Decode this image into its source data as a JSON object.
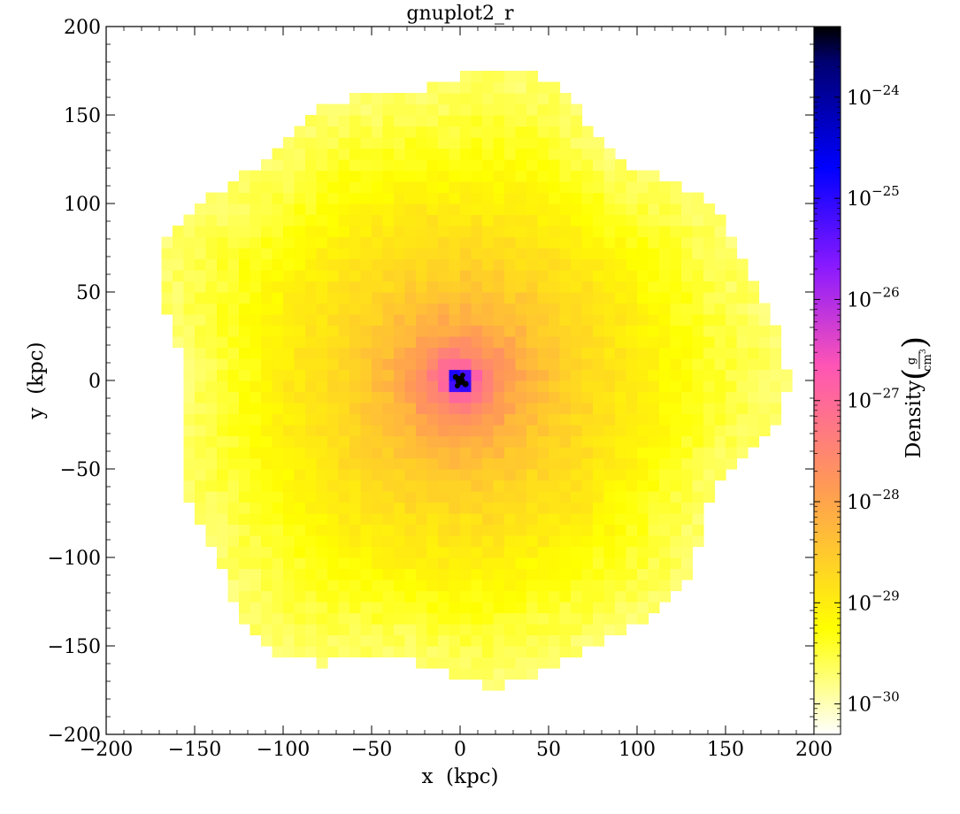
{
  "chart_data": {
    "type": "heatmap",
    "title": "gnuplot2_r",
    "xlabel": "x  (kpc)",
    "ylabel": "y  (kpc)",
    "xlim": [
      -200,
      200
    ],
    "ylim": [
      -200,
      200
    ],
    "x_ticks": [
      -200,
      -150,
      -100,
      -50,
      0,
      50,
      100,
      150,
      200
    ],
    "y_ticks": [
      -200,
      -150,
      -100,
      -50,
      0,
      50,
      100,
      150,
      200
    ],
    "x_tick_labels": [
      "−200",
      "−150",
      "−100",
      "−50",
      "0",
      "50",
      "100",
      "150",
      "200"
    ],
    "y_tick_labels": [
      "−200",
      "−150",
      "−100",
      "−50",
      "0",
      "50",
      "100",
      "150",
      "200"
    ],
    "colormap": "gnuplot2_r",
    "colorbar": {
      "label": "Density",
      "unit_numerator": "g",
      "unit_denominator": "cm",
      "unit_denominator_exp": "3",
      "scale": "log",
      "range": [
        5e-31,
        5e-24
      ],
      "ticks": [
        1e-30,
        1e-29,
        1e-28,
        1e-27,
        1e-26,
        1e-25,
        1e-24
      ],
      "tick_base": "10",
      "tick_exponents": [
        "−30",
        "−29",
        "−28",
        "−27",
        "−26",
        "−25",
        "−24"
      ]
    },
    "density_model": {
      "center": [
        0,
        0
      ],
      "outer_radius_kpc": 170,
      "edge_density": 2e-30,
      "core_density": 5e-24,
      "halo_density_at_100kpc": 1e-29,
      "halo_density_at_30kpc": 1e-28,
      "density_at_10kpc": 1e-27
    },
    "grid": false,
    "legend": "colorbar-right"
  }
}
